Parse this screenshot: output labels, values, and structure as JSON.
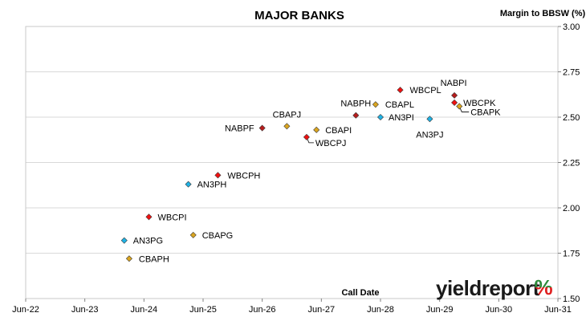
{
  "chart_data": {
    "type": "scatter",
    "title": "MAJOR BANKS",
    "ylabel": "Margin to BBSW (%)",
    "xlabel": "Call Date",
    "ylim": [
      1.5,
      3.0
    ],
    "yticks": [
      "1.50",
      "1.75",
      "2.00",
      "2.25",
      "2.50",
      "2.75",
      "3.00"
    ],
    "y_axis_side": "right",
    "xlim": [
      "2022-06",
      "2031-06"
    ],
    "xticks": [
      "Jun-22",
      "Jun-23",
      "Jun-24",
      "Jun-25",
      "Jun-26",
      "Jun-27",
      "Jun-28",
      "Jun-29",
      "Jun-30",
      "Jun-31"
    ],
    "grid": true,
    "legend": "none",
    "points": [
      {
        "label": "CBAPH",
        "x": "2024-03",
        "y": 1.72,
        "color": "#DAA520"
      },
      {
        "label": "AN3PG",
        "x": "2024-02",
        "y": 1.82,
        "color": "#1FB3E6"
      },
      {
        "label": "CBAPG",
        "x": "2025-04",
        "y": 1.85,
        "color": "#DAA520"
      },
      {
        "label": "WBCPI",
        "x": "2024-07",
        "y": 1.95,
        "color": "#F01010"
      },
      {
        "label": "AN3PH",
        "x": "2025-03",
        "y": 2.13,
        "color": "#1FB3E6"
      },
      {
        "label": "WBCPH",
        "x": "2025-09",
        "y": 2.18,
        "color": "#F01010"
      },
      {
        "label": "NABPF",
        "x": "2026-06",
        "y": 2.44,
        "color": "#B71C1C"
      },
      {
        "label": "CBAPJ",
        "x": "2026-11",
        "y": 2.45,
        "color": "#DAA520"
      },
      {
        "label": "WBCPJ",
        "x": "2027-03",
        "y": 2.39,
        "color": "#F01010"
      },
      {
        "label": "CBAPI",
        "x": "2027-05",
        "y": 2.43,
        "color": "#DAA520"
      },
      {
        "label": "NABPH",
        "x": "2028-01",
        "y": 2.51,
        "color": "#B71C1C"
      },
      {
        "label": "AN3PI",
        "x": "2028-06",
        "y": 2.5,
        "color": "#1FB3E6"
      },
      {
        "label": "CBAPL",
        "x": "2028-05",
        "y": 2.57,
        "color": "#DAA520"
      },
      {
        "label": "WBCPL",
        "x": "2028-10",
        "y": 2.65,
        "color": "#F01010"
      },
      {
        "label": "AN3PJ",
        "x": "2029-04",
        "y": 2.49,
        "color": "#1FB3E6"
      },
      {
        "label": "NABPI",
        "x": "2029-09",
        "y": 2.62,
        "color": "#B71C1C"
      },
      {
        "label": "CBAPK",
        "x": "2029-10",
        "y": 2.56,
        "color": "#DAA520"
      },
      {
        "label": "WBCPK",
        "x": "2029-09",
        "y": 2.58,
        "color": "#F01010"
      }
    ]
  },
  "logo": {
    "word": "yieldreport",
    "symbol": "%",
    "colors": {
      "word": "#1a1a1a",
      "symbol_top": "#2E8B3A",
      "symbol_bottom": "#E02020"
    }
  }
}
